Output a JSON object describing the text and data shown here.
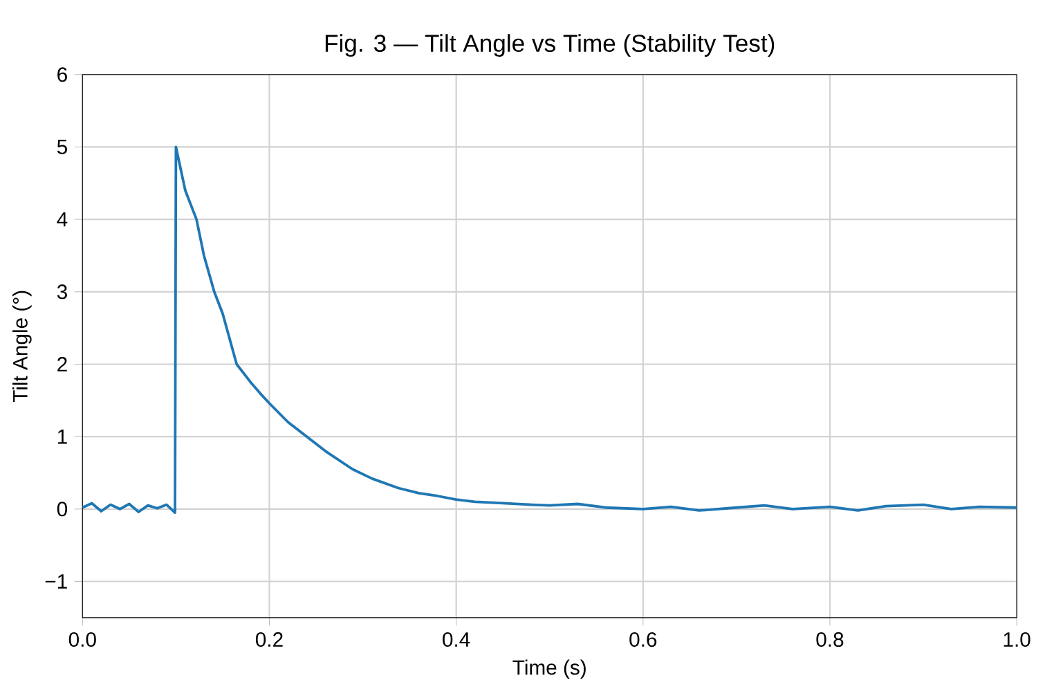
{
  "chart_data": {
    "type": "line",
    "title": "Fig. 3 — Tilt Angle vs Time (Stability Test)",
    "xlabel": "Time (s)",
    "ylabel": "Tilt Angle (°)",
    "xlim": [
      0,
      1.0
    ],
    "ylim": [
      -1.5,
      6
    ],
    "xticks": [
      {
        "value": 0,
        "label": "0.0"
      },
      0.2,
      0.4,
      0.6,
      0.8,
      {
        "value": 1.0,
        "label": "1.0"
      }
    ],
    "yticks": [
      {
        "value": -1,
        "label": "−1"
      },
      0,
      1,
      2,
      3,
      4,
      5,
      6
    ],
    "grid": true,
    "series": [
      {
        "color": "#1f77b4",
        "x": [
          0,
          0.01,
          0.02,
          0.03,
          0.04,
          0.05,
          0.06,
          0.07,
          0.08,
          0.09,
          0.099,
          0.1,
          0.11,
          0.122,
          0.13,
          0.141,
          0.15,
          0.165,
          0.18,
          0.19,
          0.2,
          0.22,
          0.24,
          0.26,
          0.289,
          0.31,
          0.338,
          0.36,
          0.38,
          0.4,
          0.42,
          0.45,
          0.48,
          0.5,
          0.53,
          0.56,
          0.6,
          0.63,
          0.66,
          0.7,
          0.73,
          0.76,
          0.8,
          0.83,
          0.86,
          0.9,
          0.93,
          0.96,
          1.0
        ],
        "values": [
          0.02,
          0.08,
          -0.03,
          0.06,
          0.0,
          0.07,
          -0.04,
          0.05,
          0.01,
          0.06,
          -0.05,
          5.0,
          4.4,
          4.0,
          3.5,
          3.0,
          2.7,
          2.0,
          1.75,
          1.6,
          1.46,
          1.2,
          1.0,
          0.8,
          0.55,
          0.42,
          0.29,
          0.22,
          0.18,
          0.13,
          0.1,
          0.08,
          0.06,
          0.05,
          0.07,
          0.02,
          0.0,
          0.03,
          -0.02,
          0.02,
          0.05,
          0.0,
          0.03,
          -0.02,
          0.04,
          0.06,
          0.0,
          0.03,
          0.02
        ]
      }
    ]
  }
}
